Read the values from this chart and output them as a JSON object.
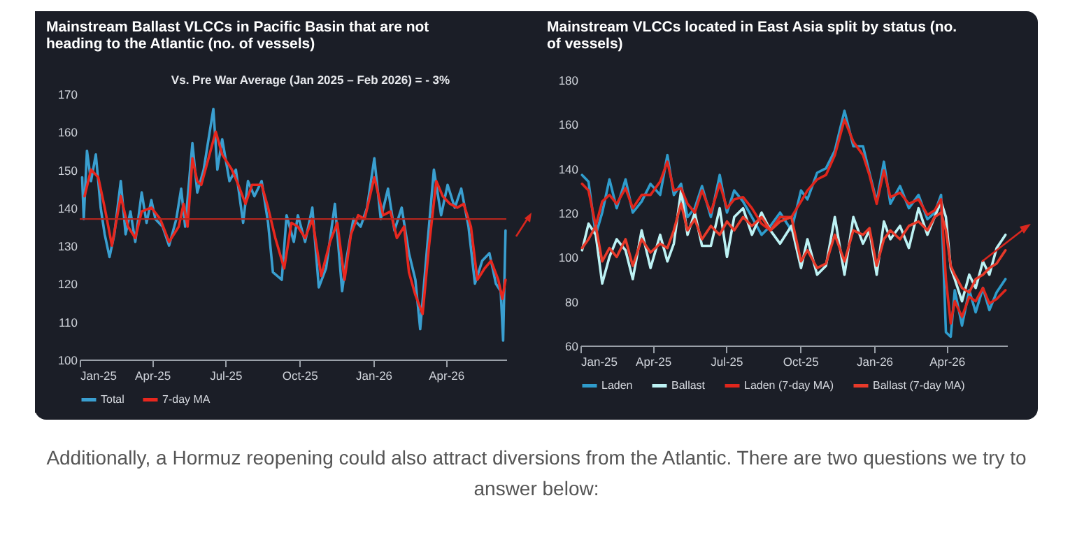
{
  "chart_data": [
    {
      "type": "line",
      "title": "Mainstream Ballast VLCCs in Pacific Basin that are not heading to the Atlantic (no. of vessels)",
      "xlim": [
        "2025-01-01",
        "2026-06-15"
      ],
      "xticks": [
        {
          "value": "2025-01-01",
          "label": "Jan-25"
        },
        {
          "value": "2025-04-01",
          "label": "Apr-25"
        },
        {
          "value": "2025-07-01",
          "label": "Jul-25"
        },
        {
          "value": "2025-10-01",
          "label": "Oct-25"
        },
        {
          "value": "2026-01-01",
          "label": "Jan-26"
        },
        {
          "value": "2026-04-01",
          "label": "Apr-26"
        }
      ],
      "ylim": [
        100,
        170
      ],
      "yticks": [
        100,
        110,
        120,
        130,
        140,
        150,
        160,
        170
      ],
      "legend": "bottom",
      "annotations": [
        "Vs.  Pre War Average  (Jan 2025 – Feb 2026) = - 3%"
      ],
      "ref_lines": [
        {
          "axis": "y",
          "value": 137,
          "color": "#b3261e"
        }
      ],
      "series": [
        {
          "name": "Total",
          "color": "#3a9fd0",
          "x": [
            "2025-01-04",
            "2025-01-06",
            "2025-01-10",
            "2025-01-15",
            "2025-01-21",
            "2025-01-27",
            "2025-02-01",
            "2025-02-07",
            "2025-02-13",
            "2025-02-21",
            "2025-02-27",
            "2025-03-05",
            "2025-03-11",
            "2025-03-19",
            "2025-03-25",
            "2025-03-31",
            "2025-04-05",
            "2025-04-14",
            "2025-04-22",
            "2025-05-01",
            "2025-05-07",
            "2025-05-12",
            "2025-05-21",
            "2025-05-27",
            "2025-06-04",
            "2025-06-16",
            "2025-06-21",
            "2025-06-27",
            "2025-07-06",
            "2025-07-14",
            "2025-07-23",
            "2025-07-29",
            "2025-08-06",
            "2025-08-15",
            "2025-08-23",
            "2025-08-29",
            "2025-09-09",
            "2025-09-15",
            "2025-09-24",
            "2025-09-29",
            "2025-10-08",
            "2025-10-17",
            "2025-10-25",
            "2025-11-03",
            "2025-11-14",
            "2025-11-23",
            "2025-11-28",
            "2025-12-07",
            "2025-12-16",
            "2025-12-24",
            "2026-01-02",
            "2026-01-10",
            "2026-01-19",
            "2026-01-27",
            "2026-02-05",
            "2026-02-14",
            "2026-02-22",
            "2026-02-28",
            "2026-03-08",
            "2026-03-17",
            "2026-03-26",
            "2026-04-03",
            "2026-04-12",
            "2026-04-20",
            "2026-04-29",
            "2026-05-07",
            "2026-05-16",
            "2026-05-25",
            "2026-06-02",
            "2026-06-08",
            "2026-06-11",
            "2026-06-14"
          ],
          "values": [
            148,
            137,
            155,
            147,
            154,
            140,
            133,
            127,
            133,
            147,
            133,
            139,
            131,
            144,
            136,
            142,
            137,
            135,
            130,
            137,
            145,
            135,
            157,
            144,
            150,
            166,
            150,
            158,
            147,
            150,
            136,
            147,
            143,
            147,
            136,
            123,
            121,
            138,
            131,
            138,
            131,
            140,
            119,
            124,
            141,
            118,
            126,
            137,
            135,
            140,
            153,
            137,
            145,
            134,
            140,
            128,
            121,
            108,
            128,
            150,
            138,
            146,
            140,
            145,
            135,
            120,
            126,
            128,
            120,
            118,
            105,
            134
          ]
        },
        {
          "name": "7-day MA",
          "color": "#e8271e",
          "x": [
            "2025-01-07",
            "2025-01-15",
            "2025-01-24",
            "2025-02-01",
            "2025-02-10",
            "2025-02-21",
            "2025-03-02",
            "2025-03-11",
            "2025-03-19",
            "2025-03-31",
            "2025-04-11",
            "2025-04-22",
            "2025-05-04",
            "2025-05-10",
            "2025-05-15",
            "2025-05-21",
            "2025-05-27",
            "2025-06-01",
            "2025-06-19",
            "2025-06-27",
            "2025-07-09",
            "2025-07-17",
            "2025-07-26",
            "2025-08-03",
            "2025-08-15",
            "2025-08-23",
            "2025-09-01",
            "2025-09-12",
            "2025-09-21",
            "2025-09-29",
            "2025-10-08",
            "2025-10-17",
            "2025-10-28",
            "2025-11-08",
            "2025-11-17",
            "2025-11-26",
            "2025-12-04",
            "2025-12-13",
            "2025-12-21",
            "2026-01-02",
            "2026-01-13",
            "2026-01-22",
            "2026-01-30",
            "2026-02-08",
            "2026-02-14",
            "2026-02-22",
            "2026-03-03",
            "2026-03-11",
            "2026-03-20",
            "2026-03-28",
            "2026-04-06",
            "2026-04-15",
            "2026-04-23",
            "2026-05-02",
            "2026-05-10",
            "2026-05-19",
            "2026-05-27",
            "2026-06-05",
            "2026-06-10",
            "2026-06-14"
          ],
          "values": [
            143,
            150,
            148,
            140,
            130,
            143,
            135,
            132,
            139,
            140,
            137,
            131,
            135,
            141,
            135,
            153,
            147,
            146,
            160,
            154,
            150,
            146,
            141,
            146,
            146,
            140,
            132,
            124,
            136,
            135,
            132,
            137,
            122,
            131,
            136,
            121,
            133,
            138,
            137,
            148,
            138,
            139,
            132,
            135,
            123,
            117,
            112,
            130,
            147,
            143,
            141,
            140,
            141,
            135,
            121,
            124,
            126,
            121,
            116,
            121
          ]
        }
      ]
    },
    {
      "type": "line",
      "title": "Mainstream VLCCs located in East Asia split by status (no. of vessels)",
      "xlim": [
        "2025-01-01",
        "2026-06-15"
      ],
      "xticks": [
        {
          "value": "2025-01-01",
          "label": "Jan-25"
        },
        {
          "value": "2025-04-01",
          "label": "Apr-25"
        },
        {
          "value": "2025-07-01",
          "label": "Jul-25"
        },
        {
          "value": "2025-10-01",
          "label": "Oct-25"
        },
        {
          "value": "2026-01-01",
          "label": "Jan-26"
        },
        {
          "value": "2026-04-01",
          "label": "Apr-26"
        }
      ],
      "ylim": [
        60,
        180
      ],
      "yticks": [
        60,
        80,
        100,
        120,
        140,
        160,
        180
      ],
      "legend": "bottom",
      "annotations": [
        "Additionally, a Hormuz reopening could also attract diversions from the Atlantic. There are two questions we try to answer below:"
      ],
      "x": [
        "2025-01-03",
        "2025-01-11",
        "2025-01-20",
        "2025-01-28",
        "2025-02-06",
        "2025-02-15",
        "2025-02-26",
        "2025-03-07",
        "2025-03-18",
        "2025-03-29",
        "2025-04-10",
        "2025-04-19",
        "2025-04-27",
        "2025-05-06",
        "2025-05-14",
        "2025-05-23",
        "2025-06-01",
        "2025-06-12",
        "2025-06-23",
        "2025-07-02",
        "2025-07-11",
        "2025-07-22",
        "2025-08-02",
        "2025-08-14",
        "2025-08-25",
        "2025-09-06",
        "2025-09-20",
        "2025-10-02",
        "2025-10-10",
        "2025-10-22",
        "2025-11-02",
        "2025-11-13",
        "2025-11-25",
        "2025-12-06",
        "2025-12-18",
        "2025-12-26",
        "2026-01-04",
        "2026-01-13",
        "2026-01-21",
        "2026-02-02",
        "2026-02-13",
        "2026-02-25",
        "2026-03-08",
        "2026-03-17",
        "2026-03-25",
        "2026-03-31",
        "2026-04-06",
        "2026-04-11",
        "2026-04-20",
        "2026-04-29",
        "2026-05-07",
        "2026-05-16",
        "2026-05-24",
        "2026-06-02",
        "2026-06-13"
      ],
      "series": [
        {
          "name": "Laden",
          "color": "#2f9ccc",
          "values": [
            137,
            134,
            110,
            120,
            135,
            122,
            135,
            120,
            125,
            133,
            128,
            146,
            128,
            133,
            118,
            122,
            132,
            118,
            137,
            120,
            130,
            125,
            118,
            110,
            114,
            120,
            112,
            130,
            126,
            138,
            140,
            148,
            166,
            150,
            150,
            138,
            125,
            143,
            124,
            132,
            122,
            128,
            117,
            120,
            128,
            66,
            64,
            85,
            69,
            85,
            75,
            86,
            76,
            84,
            90
          ]
        },
        {
          "name": "Ballast",
          "color": "#bdf2f4",
          "values": [
            103,
            115,
            110,
            88,
            100,
            108,
            103,
            90,
            112,
            95,
            110,
            98,
            106,
            130,
            110,
            120,
            105,
            105,
            122,
            100,
            118,
            122,
            110,
            120,
            112,
            106,
            114,
            95,
            108,
            92,
            96,
            118,
            92,
            118,
            106,
            112,
            92,
            116,
            108,
            114,
            104,
            122,
            110,
            118,
            125,
            118,
            95,
            90,
            80,
            92,
            86,
            98,
            92,
            104,
            110
          ]
        },
        {
          "name": "Laden (7-day MA)",
          "color": "#e0261c",
          "values": [
            133,
            130,
            114,
            125,
            128,
            124,
            131,
            122,
            128,
            128,
            134,
            143,
            130,
            131,
            124,
            120,
            130,
            120,
            133,
            122,
            126,
            127,
            122,
            115,
            112,
            118,
            118,
            125,
            130,
            135,
            137,
            146,
            162,
            152,
            146,
            137,
            124,
            139,
            127,
            129,
            124,
            126,
            119,
            121,
            126,
            90,
            70,
            80,
            73,
            82,
            80,
            86,
            79,
            81,
            85
          ]
        },
        {
          "name": "Ballast (7-day MA)",
          "color": "#e83a2a",
          "values": [
            104,
            108,
            114,
            98,
            104,
            100,
            108,
            96,
            108,
            102,
            106,
            104,
            112,
            124,
            112,
            117,
            108,
            114,
            110,
            116,
            112,
            118,
            114,
            118,
            112,
            116,
            118,
            98,
            103,
            95,
            97,
            110,
            98,
            112,
            110,
            113,
            96,
            108,
            112,
            108,
            114,
            116,
            112,
            118,
            120,
            112,
            96,
            92,
            86,
            84,
            90,
            92,
            95,
            97,
            103
          ]
        }
      ]
    }
  ]
}
